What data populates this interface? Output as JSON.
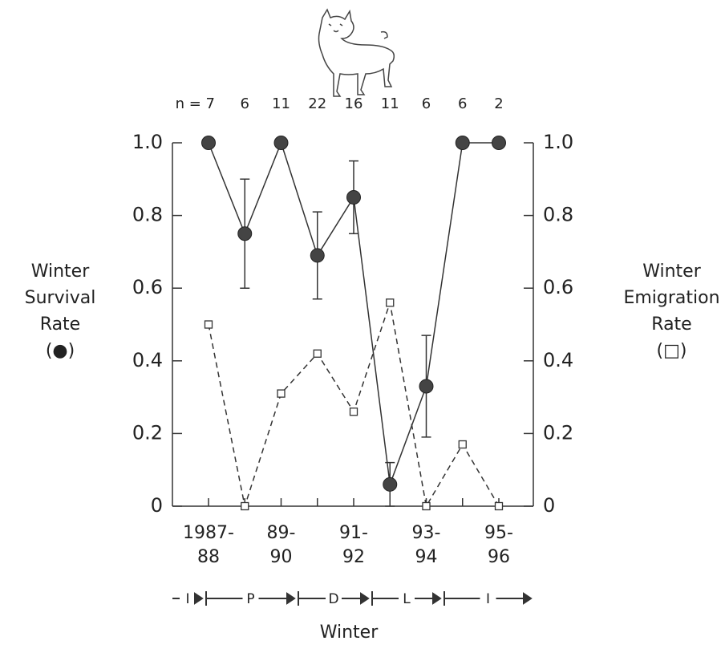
{
  "chart_data": {
    "type": "line",
    "categories": [
      "1987-\n88",
      null,
      "89-\n90",
      null,
      "91-\n92",
      null,
      "93-\n94",
      null,
      "95-\n96"
    ],
    "n_labels": [
      "n = 7",
      "6",
      "11",
      "22",
      "16",
      "11",
      "6",
      "6",
      "2"
    ],
    "series": [
      {
        "color": "#333333",
        "marker": "circle",
        "dash": "solid",
        "axis": "y",
        "values": [
          1.0,
          0.75,
          1.0,
          0.69,
          0.85,
          0.06,
          0.33,
          1.0,
          1.0
        ],
        "errors": [
          null,
          0.15,
          null,
          0.12,
          0.1,
          0.06,
          0.14,
          null,
          null
        ]
      },
      {
        "color": "#333333",
        "marker": "square",
        "dash": "dashed",
        "axis": "y2",
        "values": [
          0.5,
          0,
          0.31,
          0.42,
          0.26,
          0.56,
          0,
          0.17,
          0
        ]
      }
    ],
    "ylabel": "Winter\nSurvival\nRate\n(●)",
    "y2label": "Winter\nEmigration\nRate\n(□)",
    "xlabel": "Winter",
    "phases": [
      "I",
      "P",
      "D",
      "L",
      "I"
    ],
    "ylim": [
      0,
      1
    ],
    "yticks": [
      0,
      0.2,
      0.4,
      0.6,
      0.8,
      {
        "value": 1,
        "label": "1.0"
      }
    ],
    "y2lim": [
      0,
      1
    ],
    "y2ticks": [
      0,
      0.2,
      0.4,
      0.6,
      0.8,
      {
        "value": 1,
        "label": "1.0"
      }
    ]
  }
}
